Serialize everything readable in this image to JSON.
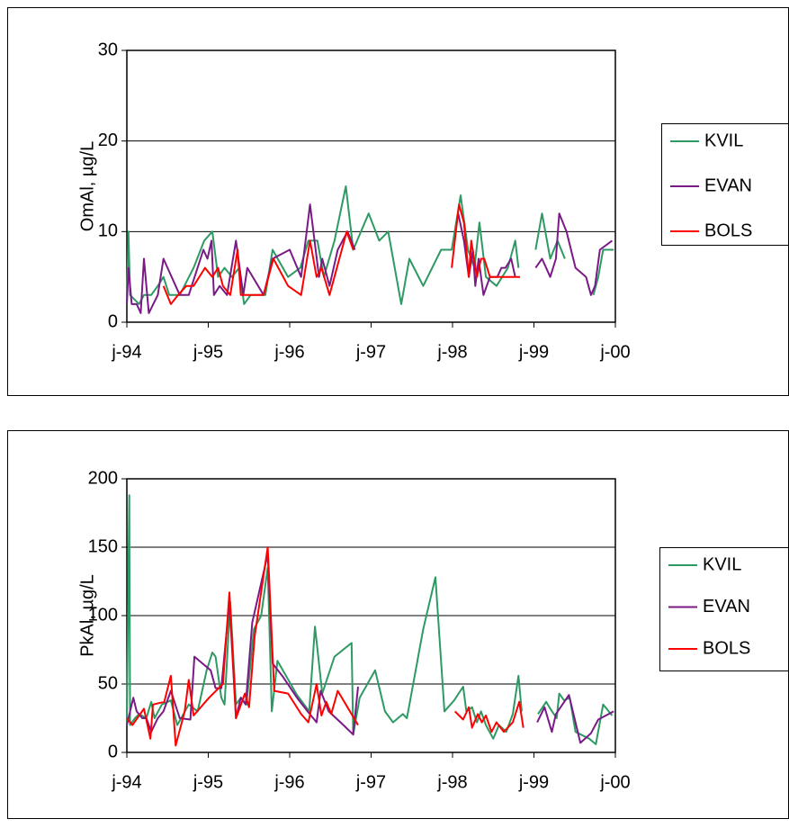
{
  "chart_data": [
    {
      "type": "line",
      "ylabel": "OmAl, µg/L",
      "xlim": [
        1994,
        2000
      ],
      "xticks": [
        {
          "value": 1994,
          "label": "j-94"
        },
        {
          "value": 1995,
          "label": "j-95"
        },
        {
          "value": 1996,
          "label": "j-96"
        },
        {
          "value": 1997,
          "label": "j-97"
        },
        {
          "value": 1998,
          "label": "j-98"
        },
        {
          "value": 1999,
          "label": "j-99"
        },
        {
          "value": 2000,
          "label": "j-00"
        }
      ],
      "ylim": [
        0,
        30
      ],
      "yticks": [
        0,
        10,
        20,
        30
      ],
      "grid": true,
      "legend": "right",
      "series": [
        {
          "name": "KVIL",
          "color": "#2e9a63",
          "x": [
            1994.0,
            1994.02,
            1994.04,
            1994.15,
            1994.21,
            1994.3,
            1994.38,
            1994.45,
            1994.52,
            1994.65,
            1994.82,
            1994.95,
            1995.05,
            1995.12,
            1995.2,
            1995.29,
            1995.38,
            1995.44,
            1995.52,
            1995.7,
            1995.79,
            1995.98,
            1996.13,
            1996.23,
            1996.34,
            1996.42,
            1996.55,
            1996.69,
            1996.78,
            1996.97,
            1997.1,
            1997.21,
            1997.37,
            1997.47,
            1997.64,
            1997.86,
            1997.99,
            1998.1,
            1998.19,
            1998.27,
            1998.33,
            1998.41,
            1998.54,
            1998.68,
            1998.77,
            1998.81,
            null,
            1999.02,
            1999.1,
            1999.2,
            1999.29,
            1999.38,
            null,
            1999.73,
            1999.79,
            1999.85,
            1999.98
          ],
          "values": [
            2,
            10,
            3,
            2,
            3,
            3,
            4,
            5,
            3,
            3,
            6,
            9,
            10,
            5,
            6,
            5,
            6,
            2,
            3,
            3,
            8,
            5,
            6,
            9,
            9,
            5,
            9,
            15,
            8,
            12,
            9,
            10,
            2,
            7,
            4,
            8,
            8,
            14,
            8,
            6,
            11,
            5,
            4,
            6,
            9,
            6,
            null,
            8,
            12,
            7,
            9,
            7,
            null,
            3,
            5,
            8,
            8
          ]
        },
        {
          "name": "EVAN",
          "color": "#7b1a86",
          "x": [
            1994.0,
            1994.02,
            1994.06,
            1994.12,
            1994.17,
            1994.21,
            1994.27,
            1994.38,
            1994.45,
            1994.65,
            1994.76,
            1994.94,
            1994.99,
            1995.04,
            1995.07,
            1995.14,
            1995.23,
            1995.34,
            1995.43,
            1995.48,
            1995.68,
            1995.79,
            1996.0,
            1996.14,
            1996.25,
            1996.36,
            1996.4,
            1996.49,
            1996.59,
            1996.71,
            1996.8,
            null,
            1998.07,
            1998.14,
            1998.2,
            1998.25,
            1998.28,
            1998.32,
            1998.38,
            1998.46,
            1998.55,
            1998.6,
            1998.65,
            1998.72,
            1998.77,
            null,
            1999.02,
            1999.1,
            1999.2,
            1999.27,
            1999.31,
            1999.4,
            1999.51,
            1999.64,
            1999.7,
            1999.75,
            1999.81,
            1999.96
          ],
          "values": [
            2,
            6,
            2,
            2,
            1,
            7,
            1,
            3,
            7,
            3,
            3,
            8,
            7,
            9,
            3,
            4,
            3,
            9,
            3,
            6,
            3,
            7,
            8,
            5,
            13,
            5,
            7,
            4,
            8,
            10,
            8,
            null,
            12,
            9,
            5,
            8,
            4,
            7,
            3,
            5,
            5,
            6,
            6,
            7,
            5,
            null,
            6,
            7,
            5,
            7,
            12,
            10,
            6,
            5,
            3,
            4,
            8,
            9
          ]
        },
        {
          "name": "BOLS",
          "color": "#ff0000",
          "x": [
            1994.45,
            1994.54,
            1994.63,
            1994.73,
            1994.82,
            1994.96,
            1995.05,
            1995.12,
            1995.18,
            1995.27,
            1995.36,
            1995.4,
            1995.68,
            1995.8,
            1995.98,
            1996.14,
            1996.25,
            1996.33,
            1996.39,
            1996.49,
            1996.7,
            1996.78,
            null,
            1997.99,
            1998.08,
            1998.14,
            1998.2,
            1998.23,
            1998.3,
            1998.35,
            1998.39,
            1998.46,
            1998.83
          ],
          "values": [
            4,
            2,
            3,
            4,
            4,
            6,
            5,
            6,
            4,
            3,
            8,
            3,
            3,
            7,
            4,
            3,
            9,
            5,
            6,
            3,
            10,
            8,
            null,
            6,
            13,
            11,
            5,
            9,
            5,
            7,
            7,
            5,
            5
          ]
        }
      ]
    },
    {
      "type": "line",
      "ylabel": "PkAl, µg/L",
      "xlim": [
        1994,
        2000
      ],
      "xticks": [
        {
          "value": 1994,
          "label": "j-94"
        },
        {
          "value": 1995,
          "label": "j-95"
        },
        {
          "value": 1996,
          "label": "j-96"
        },
        {
          "value": 1997,
          "label": "j-97"
        },
        {
          "value": 1998,
          "label": "j-98"
        },
        {
          "value": 1999,
          "label": "j-99"
        },
        {
          "value": 2000,
          "label": "j-00"
        }
      ],
      "ylim": [
        0,
        200
      ],
      "yticks": [
        0,
        50,
        100,
        150,
        200
      ],
      "grid": true,
      "legend": "right",
      "series": [
        {
          "name": "KVIL",
          "color": "#2e9a63",
          "x": [
            1994.0,
            1994.03,
            1994.04,
            1994.1,
            1994.15,
            1994.24,
            1994.3,
            1994.34,
            1994.43,
            1994.54,
            1994.62,
            1994.76,
            1994.87,
            1994.98,
            1995.05,
            1995.09,
            1995.16,
            1995.2,
            1995.27,
            1995.34,
            1995.4,
            1995.47,
            1995.56,
            1995.65,
            1995.73,
            1995.78,
            1995.85,
            1996.09,
            1996.24,
            1996.31,
            1996.4,
            1996.55,
            1996.76,
            1996.78,
            1996.86,
            1997.05,
            1997.17,
            1997.27,
            1997.39,
            1997.44,
            1997.64,
            1997.79,
            1997.9,
            1998.02,
            1998.13,
            1998.17,
            1998.24,
            1998.3,
            1998.35,
            1998.41,
            1998.5,
            1998.57,
            1998.66,
            1998.74,
            1998.81,
            1998.85,
            null,
            1999.05,
            1999.15,
            1999.2,
            1999.28,
            1999.31,
            1999.37,
            1999.44,
            1999.51,
            1999.68,
            1999.76,
            1999.85,
            1999.96
          ],
          "values": [
            20,
            188,
            20,
            25,
            28,
            25,
            37,
            25,
            35,
            38,
            20,
            35,
            30,
            60,
            73,
            70,
            40,
            35,
            110,
            35,
            40,
            35,
            90,
            100,
            135,
            30,
            67,
            42,
            30,
            92,
            43,
            70,
            80,
            13,
            40,
            60,
            30,
            22,
            28,
            25,
            90,
            128,
            30,
            38,
            48,
            30,
            33,
            22,
            30,
            20,
            10,
            20,
            15,
            28,
            56,
            30,
            null,
            28,
            37,
            32,
            25,
            43,
            38,
            40,
            15,
            10,
            6,
            35,
            27
          ]
        },
        {
          "name": "EVAN",
          "color": "#7b1a86",
          "x": [
            1994.0,
            1994.08,
            1994.12,
            1994.19,
            1994.24,
            1994.3,
            1994.38,
            1994.45,
            1994.54,
            1994.65,
            1994.78,
            1994.83,
            1995.03,
            1995.09,
            1995.16,
            1995.26,
            1995.34,
            1995.4,
            1995.46,
            1995.54,
            1995.73,
            1995.79,
            1995.92,
            1996.09,
            1996.22,
            1996.33,
            1996.38,
            1996.48,
            1996.66,
            1996.78,
            1996.84,
            null,
            1999.04,
            1999.13,
            1999.22,
            1999.27,
            1999.43,
            1999.57,
            1999.7,
            1999.79,
            1999.98
          ],
          "values": [
            20,
            40,
            30,
            25,
            25,
            15,
            25,
            30,
            45,
            25,
            24,
            70,
            60,
            47,
            47,
            110,
            25,
            40,
            35,
            95,
            145,
            65,
            55,
            40,
            30,
            22,
            45,
            30,
            20,
            13,
            48,
            null,
            22,
            33,
            15,
            28,
            42,
            7,
            14,
            24,
            30
          ]
        },
        {
          "name": "BOLS",
          "color": "#ff0000",
          "x": [
            1994.0,
            1994.07,
            1994.21,
            1994.29,
            1994.32,
            1994.46,
            1994.54,
            1994.6,
            1994.71,
            1994.76,
            1994.82,
            1995.01,
            1995.18,
            1995.26,
            1995.34,
            1995.45,
            1995.5,
            1995.57,
            1995.73,
            1995.81,
            1995.98,
            1996.14,
            1996.23,
            1996.33,
            1996.39,
            1996.45,
            1996.51,
            1996.59,
            1996.84,
            null,
            1998.03,
            1998.13,
            1998.2,
            1998.24,
            1998.31,
            1998.36,
            1998.41,
            1998.48,
            1998.54,
            1998.63,
            1998.74,
            1998.82,
            1998.87
          ],
          "values": [
            25,
            20,
            32,
            10,
            35,
            37,
            56,
            5,
            30,
            53,
            27,
            40,
            50,
            117,
            25,
            43,
            33,
            85,
            150,
            45,
            43,
            28,
            22,
            50,
            27,
            37,
            28,
            45,
            20,
            null,
            30,
            24,
            33,
            18,
            28,
            22,
            27,
            15,
            22,
            15,
            22,
            37,
            18
          ]
        }
      ]
    }
  ]
}
